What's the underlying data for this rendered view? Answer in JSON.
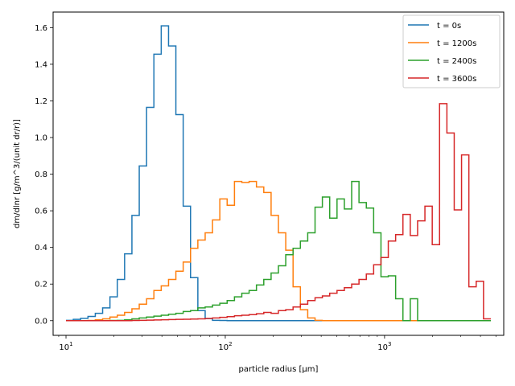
{
  "chart_data": {
    "type": "line",
    "title": "",
    "xlabel": "particle radius [µm]",
    "ylabel": "dm/dlnr [g/m^3/(unit dr/r)]",
    "xscale": "log",
    "xlim": [
      8.3,
      5600
    ],
    "ylim": [
      -0.08,
      1.685
    ],
    "xticks": [
      {
        "value": 10,
        "base": "10",
        "exp": "1"
      },
      {
        "value": 100,
        "base": "10",
        "exp": "2"
      },
      {
        "value": 1000,
        "base": "10",
        "exp": "3"
      }
    ],
    "yticks": [
      {
        "value": 0.0,
        "label": "0.0"
      },
      {
        "value": 0.2,
        "label": "0.2"
      },
      {
        "value": 0.4,
        "label": "0.4"
      },
      {
        "value": 0.6,
        "label": "0.6"
      },
      {
        "value": 0.8,
        "label": "0.8"
      },
      {
        "value": 1.0,
        "label": "1.0"
      },
      {
        "value": 1.2,
        "label": "1.2"
      },
      {
        "value": 1.4,
        "label": "1.4"
      },
      {
        "value": 1.6,
        "label": "1.6"
      }
    ],
    "grid": false,
    "legend": "top-right",
    "bin_edges": {
      "start": 10,
      "ratio": 1.1117,
      "count": 58
    },
    "series": [
      {
        "name": "t = 0s",
        "color": "#1f77b4",
        "values": [
          0.002,
          0.007,
          0.013,
          0.023,
          0.04,
          0.07,
          0.13,
          0.225,
          0.365,
          0.575,
          0.845,
          1.165,
          1.455,
          1.61,
          1.5,
          1.125,
          0.625,
          0.235,
          0.055,
          0.011,
          0.002,
          0.001,
          0.0,
          0.0,
          0.0,
          0.0,
          0.0,
          0.0,
          0.0,
          0.0,
          0.0,
          0.0,
          0.0,
          0.0,
          0.0,
          0.0,
          0.0,
          0.0,
          0.0,
          0.0,
          0.0,
          0.0,
          0.0,
          0.0,
          0.0,
          0.0,
          0.0,
          0.0,
          0.0,
          0.0,
          0.0,
          0.0,
          0.0,
          0.0,
          0.0,
          0.0,
          0.0,
          0.0
        ]
      },
      {
        "name": "t = 1200s",
        "color": "#ff7f0e",
        "values": [
          0.0,
          0.0,
          0.0,
          0.001,
          0.005,
          0.01,
          0.02,
          0.03,
          0.045,
          0.065,
          0.09,
          0.12,
          0.165,
          0.19,
          0.225,
          0.27,
          0.32,
          0.395,
          0.44,
          0.48,
          0.55,
          0.665,
          0.63,
          0.76,
          0.755,
          0.76,
          0.73,
          0.7,
          0.575,
          0.48,
          0.385,
          0.185,
          0.06,
          0.015,
          0.002,
          0.0,
          0.0,
          0.0,
          0.0,
          0.0,
          0.0,
          0.0,
          0.0,
          0.0,
          0.0,
          0.0,
          0.0,
          0.0,
          0.0,
          0.0,
          0.0,
          0.0,
          0.0,
          0.0,
          0.0,
          0.0,
          0.0,
          0.0
        ]
      },
      {
        "name": "t = 2400s",
        "color": "#2ca02c",
        "values": [
          0.0,
          0.0,
          0.0,
          0.0,
          0.0,
          0.0,
          0.001,
          0.002,
          0.005,
          0.01,
          0.015,
          0.02,
          0.025,
          0.03,
          0.035,
          0.04,
          0.05,
          0.055,
          0.07,
          0.075,
          0.085,
          0.095,
          0.11,
          0.13,
          0.15,
          0.165,
          0.195,
          0.225,
          0.26,
          0.3,
          0.36,
          0.395,
          0.435,
          0.48,
          0.62,
          0.675,
          0.56,
          0.665,
          0.61,
          0.76,
          0.645,
          0.615,
          0.48,
          0.24,
          0.245,
          0.12,
          0.0,
          0.12,
          0.0,
          0.0,
          0.0,
          0.0,
          0.0,
          0.0,
          0.0,
          0.0,
          0.0,
          0.0
        ]
      },
      {
        "name": "t = 3600s",
        "color": "#d62728",
        "values": [
          0.0,
          0.0,
          0.0,
          0.0,
          0.0,
          0.0,
          0.0,
          0.0,
          0.0,
          0.001,
          0.002,
          0.003,
          0.004,
          0.005,
          0.006,
          0.007,
          0.008,
          0.009,
          0.01,
          0.012,
          0.015,
          0.018,
          0.022,
          0.027,
          0.03,
          0.033,
          0.038,
          0.045,
          0.04,
          0.055,
          0.06,
          0.075,
          0.09,
          0.11,
          0.125,
          0.135,
          0.15,
          0.165,
          0.18,
          0.2,
          0.225,
          0.255,
          0.305,
          0.345,
          0.435,
          0.47,
          0.58,
          0.465,
          0.545,
          0.625,
          0.415,
          1.185,
          1.025,
          0.605,
          0.905,
          0.185,
          0.215,
          0.01
        ]
      }
    ]
  }
}
